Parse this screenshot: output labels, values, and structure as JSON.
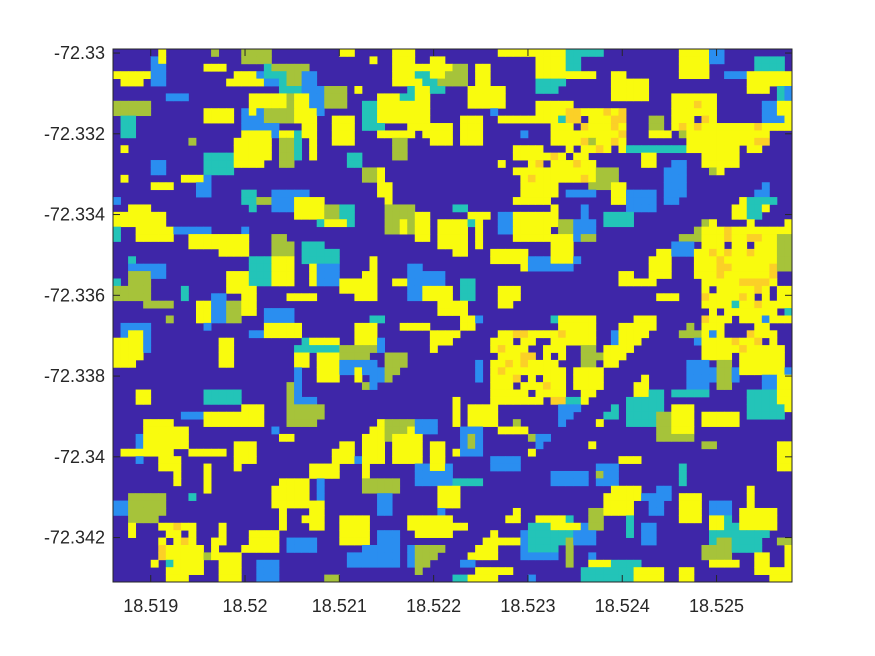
{
  "chart_data": {
    "type": "heatmap",
    "title": "",
    "xlabel": "",
    "ylabel": "",
    "xlim": [
      18.5186,
      18.5258
    ],
    "ylim": [
      -72.3299,
      -72.3431
    ],
    "x_ticks": [
      {
        "value": 18.519,
        "label": "18.519"
      },
      {
        "value": 18.52,
        "label": "18.52"
      },
      {
        "value": 18.521,
        "label": "18.521"
      },
      {
        "value": 18.522,
        "label": "18.522"
      },
      {
        "value": 18.523,
        "label": "18.523"
      },
      {
        "value": 18.524,
        "label": "18.524"
      },
      {
        "value": 18.525,
        "label": "18.525"
      }
    ],
    "y_ticks": [
      {
        "value": -72.342,
        "label": "-72.342"
      },
      {
        "value": -72.34,
        "label": "-72.34"
      },
      {
        "value": -72.338,
        "label": "-72.338"
      },
      {
        "value": -72.336,
        "label": "-72.336"
      },
      {
        "value": -72.334,
        "label": "-72.334"
      },
      {
        "value": -72.332,
        "label": "-72.332"
      },
      {
        "value": -72.33,
        "label": "-72.33"
      }
    ],
    "y_direction": "reverse",
    "colormap": [
      "#3e26a8",
      "#2a8ef0",
      "#23c4b8",
      "#a6c33a",
      "#fbd027",
      "#f9fb0e"
    ],
    "background_color": "#3e26a8",
    "grid": false,
    "legend": "none"
  }
}
